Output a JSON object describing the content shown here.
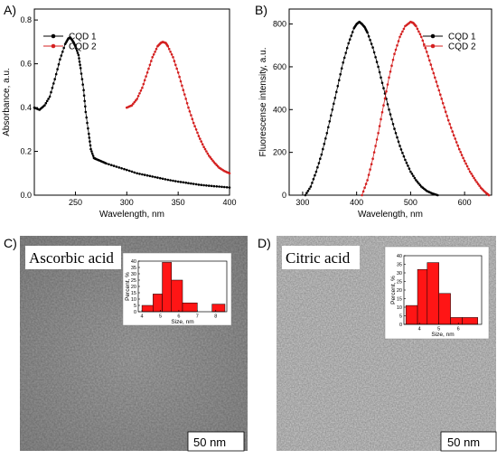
{
  "colors": {
    "series1": "#000000",
    "series2": "#d42020",
    "hist": "#ff1515"
  },
  "panels": {
    "A": {
      "letter": "A)"
    },
    "B": {
      "letter": "B)"
    },
    "C": {
      "letter": "C)",
      "label": "Ascorbic acid",
      "scale": "50 nm"
    },
    "D": {
      "letter": "D)",
      "label": "Citric acid",
      "scale": "50 nm"
    }
  },
  "chart_data": [
    {
      "type": "line",
      "panel": "A",
      "xlabel": "Wavelength, nm",
      "ylabel": "Absorbance, a.u.",
      "xlim": [
        210,
        400
      ],
      "ylim": [
        0,
        0.85
      ],
      "xticks": [
        250,
        300,
        350,
        400
      ],
      "yticks": [
        0.0,
        0.2,
        0.4,
        0.6,
        0.8
      ],
      "legend_position": "top-left",
      "series": [
        {
          "name": "CQD 1",
          "color": "#000000",
          "x": [
            210,
            215,
            220,
            225,
            230,
            235,
            240,
            243,
            245,
            248,
            250,
            253,
            255,
            258,
            260,
            263,
            265,
            268,
            270,
            275,
            280,
            290,
            300,
            310,
            320,
            330,
            340,
            350,
            360,
            370,
            380,
            390,
            400
          ],
          "y": [
            0.4,
            0.39,
            0.41,
            0.45,
            0.53,
            0.62,
            0.69,
            0.715,
            0.72,
            0.7,
            0.68,
            0.64,
            0.58,
            0.48,
            0.38,
            0.28,
            0.21,
            0.17,
            0.165,
            0.155,
            0.145,
            0.13,
            0.115,
            0.1,
            0.09,
            0.08,
            0.07,
            0.062,
            0.055,
            0.048,
            0.043,
            0.039,
            0.035
          ]
        },
        {
          "name": "CQD 2",
          "color": "#d42020",
          "x": [
            300,
            305,
            310,
            315,
            320,
            325,
            330,
            333,
            335,
            338,
            340,
            345,
            350,
            355,
            360,
            365,
            370,
            375,
            380,
            385,
            390,
            395,
            400
          ],
          "y": [
            0.4,
            0.41,
            0.44,
            0.49,
            0.56,
            0.63,
            0.68,
            0.695,
            0.7,
            0.695,
            0.68,
            0.63,
            0.56,
            0.48,
            0.4,
            0.33,
            0.27,
            0.22,
            0.18,
            0.15,
            0.125,
            0.11,
            0.1
          ]
        }
      ]
    },
    {
      "type": "line",
      "panel": "B",
      "xlabel": "Wavelength, nm",
      "ylabel": "Fluorescense intensity, a.u.",
      "xlim": [
        275,
        650
      ],
      "ylim": [
        0,
        870
      ],
      "xticks": [
        300,
        400,
        500,
        600
      ],
      "yticks": [
        0,
        200,
        400,
        600,
        800
      ],
      "legend_position": "top-right",
      "series": [
        {
          "name": "CQD 1",
          "color": "#000000",
          "x": [
            305,
            315,
            325,
            335,
            345,
            355,
            365,
            375,
            385,
            395,
            400,
            405,
            410,
            415,
            420,
            430,
            440,
            450,
            460,
            470,
            480,
            490,
            500,
            510,
            520,
            530,
            540,
            550
          ],
          "y": [
            0,
            40,
            110,
            190,
            290,
            400,
            510,
            620,
            710,
            780,
            800,
            810,
            800,
            785,
            760,
            690,
            600,
            500,
            400,
            310,
            230,
            165,
            110,
            70,
            40,
            20,
            8,
            0
          ]
        },
        {
          "name": "CQD 2",
          "color": "#d42020",
          "x": [
            410,
            420,
            430,
            440,
            450,
            460,
            470,
            480,
            490,
            500,
            505,
            510,
            520,
            530,
            540,
            550,
            560,
            570,
            580,
            590,
            600,
            610,
            620,
            630,
            640,
            645
          ],
          "y": [
            0,
            70,
            170,
            290,
            420,
            550,
            660,
            740,
            790,
            810,
            805,
            790,
            740,
            670,
            590,
            510,
            430,
            350,
            280,
            215,
            160,
            110,
            70,
            35,
            10,
            0
          ]
        }
      ]
    },
    {
      "type": "bar",
      "panel": "C",
      "xlabel": "Size, nm",
      "ylabel": "Percent, %",
      "xlim": [
        3.8,
        8.6
      ],
      "ylim": [
        0,
        40
      ],
      "xticks": [
        4,
        5,
        6,
        7,
        8
      ],
      "yticks": [
        0,
        5,
        10,
        15,
        20,
        25,
        30,
        35,
        40
      ],
      "bins": [
        {
          "from": 4.0,
          "to": 4.6,
          "value": 5
        },
        {
          "from": 4.6,
          "to": 5.1,
          "value": 14
        },
        {
          "from": 5.1,
          "to": 5.6,
          "value": 39
        },
        {
          "from": 5.6,
          "to": 6.2,
          "value": 25
        },
        {
          "from": 6.2,
          "to": 7.0,
          "value": 7
        },
        {
          "from": 7.8,
          "to": 8.5,
          "value": 6
        }
      ]
    },
    {
      "type": "bar",
      "panel": "D",
      "xlabel": "Size, nm",
      "ylabel": "Percent, %",
      "xlim": [
        3.2,
        7.2
      ],
      "ylim": [
        0,
        40
      ],
      "xticks": [
        4,
        5,
        6
      ],
      "yticks": [
        0,
        5,
        10,
        15,
        20,
        25,
        30,
        35,
        40
      ],
      "bins": [
        {
          "from": 3.3,
          "to": 3.9,
          "value": 11
        },
        {
          "from": 3.9,
          "to": 4.4,
          "value": 32
        },
        {
          "from": 4.4,
          "to": 5.0,
          "value": 36
        },
        {
          "from": 5.0,
          "to": 5.6,
          "value": 18
        },
        {
          "from": 5.6,
          "to": 6.2,
          "value": 4
        },
        {
          "from": 6.2,
          "to": 7.0,
          "value": 4
        }
      ]
    }
  ]
}
